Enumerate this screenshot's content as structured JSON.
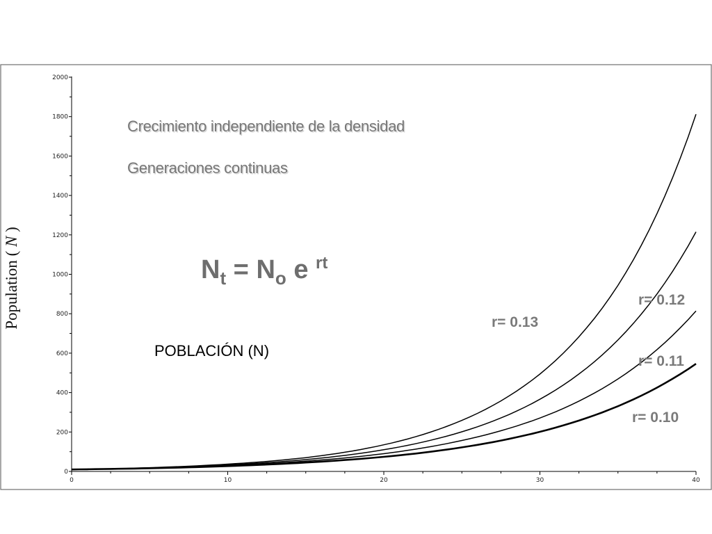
{
  "chart_data": {
    "type": "line",
    "title": "Crecimiento independiente de la densidad",
    "subtitle": "Generaciones continuas",
    "ylabel": "Population ( ",
    "ylabel_var": "N",
    "ylabel_end": " )",
    "xlabel": "",
    "xlim": [
      0,
      40
    ],
    "ylim": [
      0,
      2000
    ],
    "x_ticks": [
      0,
      10,
      20,
      30,
      40
    ],
    "x_tick_labels": [
      "0",
      "10",
      "20",
      "30",
      "40"
    ],
    "y_ticks": [
      0,
      200,
      400,
      600,
      800,
      1000,
      1200,
      1400,
      1600,
      1800,
      2000
    ],
    "y_tick_labels": [
      "0",
      "200",
      "400",
      "600",
      "800",
      "1000",
      "1200",
      "1400",
      "1600",
      "1800",
      "2000"
    ],
    "grid": false,
    "x": [
      0,
      5,
      10,
      15,
      20,
      25,
      30,
      35,
      40
    ],
    "series": [
      {
        "name": "r= 0.13",
        "values": [
          10,
          19,
          37,
          70,
          135,
          259,
          494,
          944,
          1812
        ]
      },
      {
        "name": "r= 0.12",
        "values": [
          10,
          18,
          33,
          60,
          110,
          201,
          366,
          667,
          1215
        ]
      },
      {
        "name": "r= 0.11",
        "values": [
          10,
          17,
          30,
          52,
          90,
          157,
          271,
          469,
          814
        ]
      },
      {
        "name": "r= 0.10",
        "values": [
          10,
          16,
          27,
          45,
          74,
          122,
          201,
          331,
          546
        ]
      }
    ],
    "annotations": {
      "formula": {
        "N": "N",
        "t": "t",
        "eq": " = ",
        "o": "o",
        "e": " e ",
        "rt": "rt"
      },
      "poblacion": "POBLACIÓN (N)"
    }
  }
}
